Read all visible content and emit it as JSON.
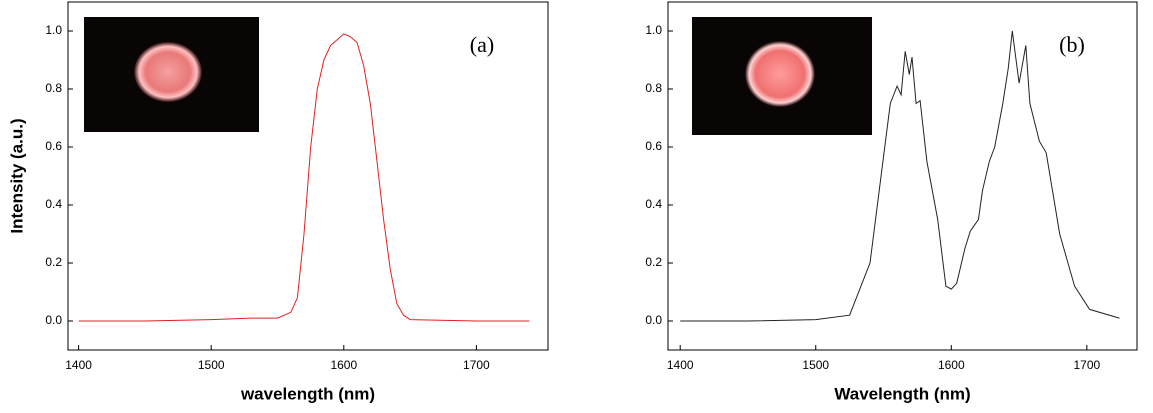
{
  "chart_data": [
    {
      "type": "line",
      "x_label": "wavelength (nm)",
      "y_label": "Intensity (a.u.)",
      "annotation": "(a)",
      "color": "#e02020",
      "x": [
        1400,
        1450,
        1500,
        1530,
        1550,
        1560,
        1565,
        1570,
        1575,
        1580,
        1585,
        1590,
        1595,
        1600,
        1605,
        1610,
        1615,
        1620,
        1625,
        1630,
        1635,
        1640,
        1645,
        1650,
        1700,
        1740
      ],
      "values": [
        0,
        0,
        0.005,
        0.01,
        0.01,
        0.03,
        0.08,
        0.3,
        0.6,
        0.8,
        0.9,
        0.95,
        0.97,
        0.99,
        0.98,
        0.96,
        0.88,
        0.75,
        0.55,
        0.35,
        0.18,
        0.06,
        0.02,
        0.005,
        0,
        0
      ],
      "xlim": [
        1392,
        1754
      ],
      "ylim": [
        -0.1,
        1.1
      ],
      "xticks": [
        1400,
        1500,
        1600,
        1700
      ],
      "yticks": [
        {
          "value": 0,
          "label": "0.0"
        },
        0.2,
        0.4,
        0.6,
        0.8,
        {
          "value": 1,
          "label": "1.0"
        }
      ]
    },
    {
      "type": "line",
      "x_label": "Wavelength (nm)",
      "annotation": "(b)",
      "color": "#222222",
      "x": [
        1400,
        1450,
        1500,
        1525,
        1540,
        1555,
        1560,
        1563,
        1566,
        1569,
        1571,
        1574,
        1577,
        1582,
        1590,
        1596,
        1600,
        1604,
        1610,
        1614,
        1620,
        1623,
        1628,
        1632,
        1638,
        1642,
        1645,
        1650,
        1655,
        1658,
        1665,
        1670,
        1680,
        1691,
        1702,
        1724
      ],
      "values": [
        0,
        0,
        0.005,
        0.02,
        0.2,
        0.75,
        0.81,
        0.78,
        0.93,
        0.85,
        0.91,
        0.75,
        0.76,
        0.55,
        0.35,
        0.12,
        0.11,
        0.13,
        0.25,
        0.31,
        0.35,
        0.45,
        0.55,
        0.6,
        0.75,
        0.87,
        1.0,
        0.82,
        0.95,
        0.75,
        0.62,
        0.58,
        0.3,
        0.12,
        0.04,
        0.01
      ],
      "xlim": [
        1391,
        1737
      ],
      "ylim": [
        -0.1,
        1.1
      ],
      "xticks": [
        1400,
        1500,
        1600,
        1700
      ],
      "yticks": [
        {
          "value": 0,
          "label": "0.0"
        },
        0.2,
        0.4,
        0.6,
        0.8,
        {
          "value": 1,
          "label": "1.0"
        }
      ]
    }
  ]
}
